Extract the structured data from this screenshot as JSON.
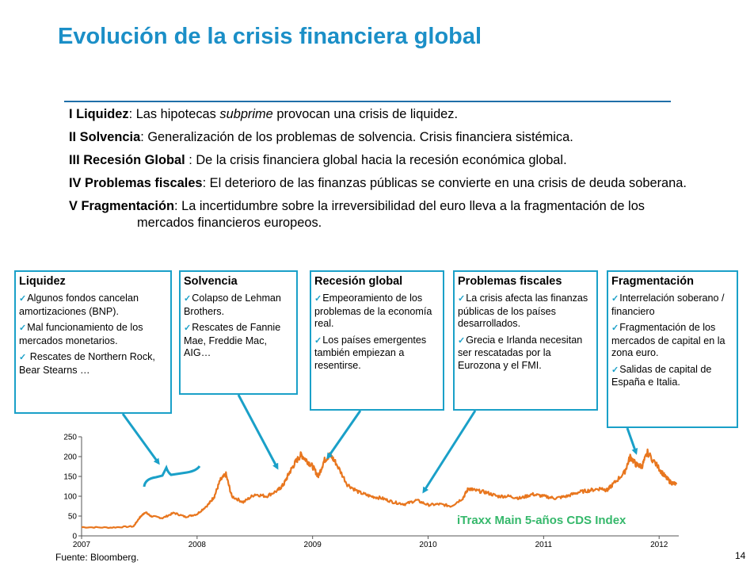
{
  "title": "Evolución de la crisis financiera global",
  "phases": [
    {
      "label": "I Liquidez",
      "sep": ": ",
      "text_pre": "Las hipotecas ",
      "text_em": "subprime",
      "text_post": " provocan una crisis de liquidez."
    },
    {
      "label": "II Solvencia",
      "sep": ": ",
      "text_pre": "Generalización de los problemas de solvencia. Crisis financiera sistémica.",
      "text_em": "",
      "text_post": ""
    },
    {
      "label": "III Recesión Global",
      "sep": " : ",
      "text_pre": "De la crisis financiera global hacia la recesión económica global.",
      "text_em": "",
      "text_post": ""
    },
    {
      "label": "IV Problemas fiscales",
      "sep": ": ",
      "text_pre": "El deterioro de las finanzas públicas se convierte en una crisis de deuda soberana.",
      "text_em": "",
      "text_post": ""
    },
    {
      "label": "V Fragmentación",
      "sep": ": ",
      "text_pre": "La incertidumbre sobre la irreversibilidad del euro lleva a la fragmentación de los mercados financieros europeos.",
      "text_em": "",
      "text_post": ""
    }
  ],
  "boxes": [
    {
      "title": "Liquidez",
      "items": [
        "Algunos fondos cancelan amortizaciones (BNP).",
        "Mal funcionamiento de los mercados monetarios.",
        " Rescates de Northern Rock, Bear Stearns …"
      ]
    },
    {
      "title": "Solvencia",
      "items": [
        "Colapso de Lehman Brothers.",
        "Rescates de Fannie Mae, Freddie Mac, AIG…"
      ]
    },
    {
      "title": "Recesión global",
      "items": [
        "Empeoramiento de los problemas de la economía real.",
        "Los países emergentes también empiezan a resentirse."
      ]
    },
    {
      "title": "Problemas fiscales",
      "items": [
        "La crisis afecta las finanzas públicas de los países desarrollados.",
        "Grecia e Irlanda necesitan ser rescatadas por la Eurozona y el FMI."
      ]
    },
    {
      "title": "Fragmentación",
      "items": [
        "Interrelación soberano / financiero",
        "Fragmentación de los mercados de capital en la zona euro.",
        "Salidas de capital de España e Italia."
      ]
    }
  ],
  "check_glyph": "✓",
  "chart_data": {
    "type": "line",
    "series": [
      {
        "name": "iTraxx Main 5-años CDS Index",
        "color": "#e8761e",
        "x": [
          2007.0,
          2007.25,
          2007.45,
          2007.5,
          2007.55,
          2007.6,
          2007.7,
          2007.8,
          2007.9,
          2008.0,
          2008.1,
          2008.15,
          2008.2,
          2008.25,
          2008.3,
          2008.4,
          2008.5,
          2008.6,
          2008.7,
          2008.75,
          2008.8,
          2008.85,
          2008.9,
          2008.95,
          2009.0,
          2009.05,
          2009.1,
          2009.15,
          2009.2,
          2009.3,
          2009.4,
          2009.5,
          2009.6,
          2009.7,
          2009.8,
          2009.9,
          2010.0,
          2010.1,
          2010.2,
          2010.3,
          2010.35,
          2010.4,
          2010.5,
          2010.6,
          2010.7,
          2010.8,
          2010.9,
          2011.0,
          2011.1,
          2011.2,
          2011.3,
          2011.4,
          2011.5,
          2011.55,
          2011.6,
          2011.7,
          2011.75,
          2011.8,
          2011.85,
          2011.9,
          2012.0,
          2012.05,
          2012.1,
          2012.15
        ],
        "values": [
          22,
          21,
          24,
          45,
          60,
          50,
          45,
          58,
          48,
          55,
          80,
          100,
          140,
          155,
          100,
          85,
          105,
          100,
          115,
          130,
          160,
          185,
          205,
          190,
          175,
          150,
          190,
          205,
          185,
          130,
          110,
          100,
          95,
          85,
          80,
          90,
          78,
          80,
          75,
          95,
          120,
          115,
          110,
          100,
          100,
          95,
          105,
          100,
          95,
          100,
          110,
          115,
          120,
          115,
          130,
          160,
          200,
          180,
          175,
          210,
          170,
          150,
          135,
          130
        ]
      }
    ],
    "x_ticks": [
      "2007",
      "2008",
      "2009",
      "2010",
      "2011",
      "2012"
    ],
    "x_tick_values": [
      2007,
      2008,
      2009,
      2010,
      2011,
      2012
    ],
    "y_ticks": [
      "0",
      "50",
      "100",
      "150",
      "200",
      "250"
    ],
    "y_tick_values": [
      0,
      50,
      100,
      150,
      200,
      250
    ],
    "xlim": [
      2007.0,
      2012.17
    ],
    "ylim": [
      0,
      250
    ],
    "grid": false,
    "legend": "bottom-right"
  },
  "source": "Fuente: Bloomberg.",
  "page_number": "14"
}
